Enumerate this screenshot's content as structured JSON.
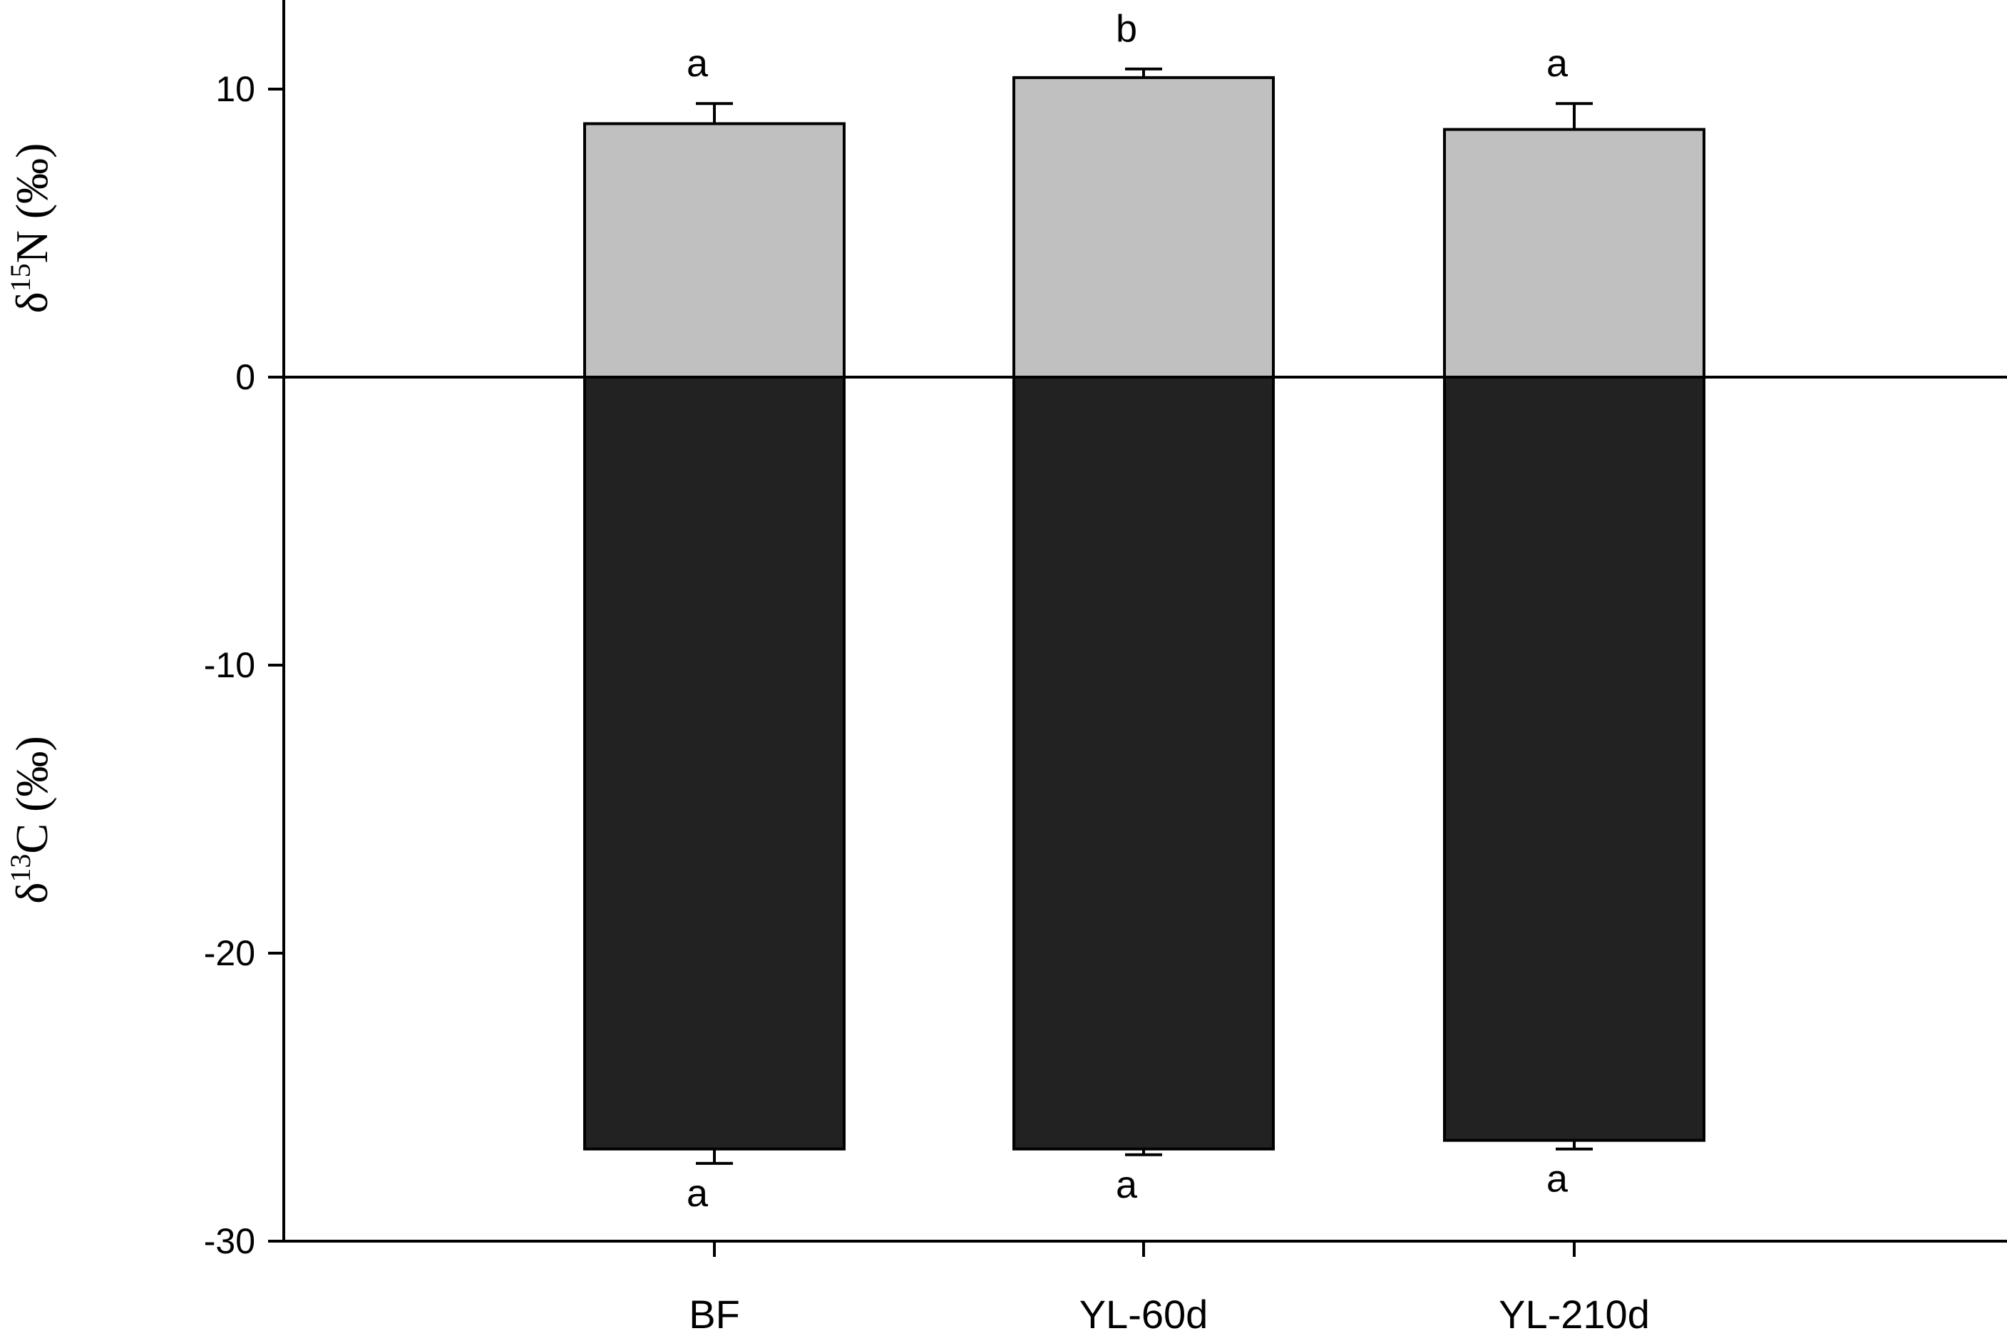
{
  "chart_data": {
    "type": "bar",
    "categories": [
      "BF",
      "YL-60d",
      "YL-210d"
    ],
    "series": [
      {
        "name": "δ15N",
        "values": [
          8.8,
          10.4,
          8.6
        ],
        "errors": [
          0.7,
          0.3,
          0.9
        ],
        "significance": [
          "a",
          "b",
          "a"
        ],
        "color": "#c0c0c0"
      },
      {
        "name": "δ13C",
        "values": [
          -26.8,
          -26.8,
          -26.5
        ],
        "errors": [
          0.5,
          0.2,
          0.3
        ],
        "significance": [
          "a",
          "a",
          "a"
        ],
        "color": "#222222"
      }
    ],
    "ylabel_top": {
      "delta": "δ",
      "sup": "15",
      "rest": "N (‰)"
    },
    "ylabel_bottom": {
      "delta": "δ",
      "sup": "13",
      "rest": "C (‰)"
    },
    "ylim": [
      -30,
      13
    ],
    "yticks": [
      10,
      0,
      -10,
      -20,
      -30
    ],
    "zero_line": true,
    "grid": false
  }
}
